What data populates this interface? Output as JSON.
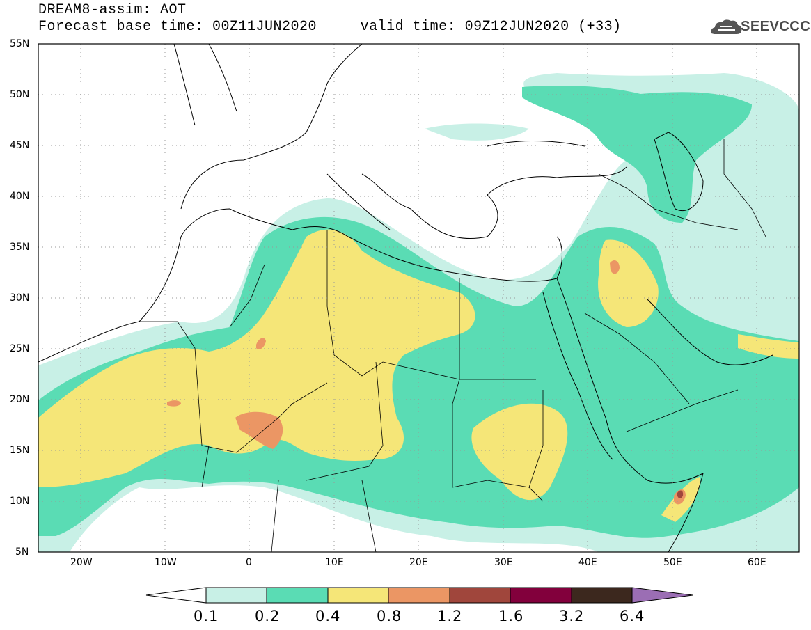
{
  "header": {
    "line1": "DREAM8-assim: AOT",
    "line2": "Forecast base time: 00Z11JUN2020     valid time: 09Z12JUN2020 (+33)"
  },
  "logo": {
    "text": "SEEVCCC",
    "icon": "cloud-icon",
    "color": "#4a4a4a"
  },
  "axes": {
    "lat_labels": [
      "55N",
      "50N",
      "45N",
      "40N",
      "35N",
      "30N",
      "25N",
      "20N",
      "15N",
      "10N",
      "5N"
    ],
    "lon_labels": [
      "20W",
      "10W",
      "0",
      "10E",
      "20E",
      "30E",
      "40E",
      "50E",
      "60E"
    ],
    "lat_range": [
      5,
      55
    ],
    "lon_range": [
      -25,
      65
    ],
    "grid": "dotted"
  },
  "colorbar": {
    "labels": [
      "0.1",
      "0.2",
      "0.4",
      "0.8",
      "1.2",
      "1.6",
      "3.2",
      "6.4"
    ],
    "colors": [
      "#ffffff",
      "#c8f0e6",
      "#5adcb4",
      "#f5e678",
      "#eb9664",
      "#a0463c",
      "#82003c",
      "#3c281e",
      "#9b6eb4"
    ]
  }
}
